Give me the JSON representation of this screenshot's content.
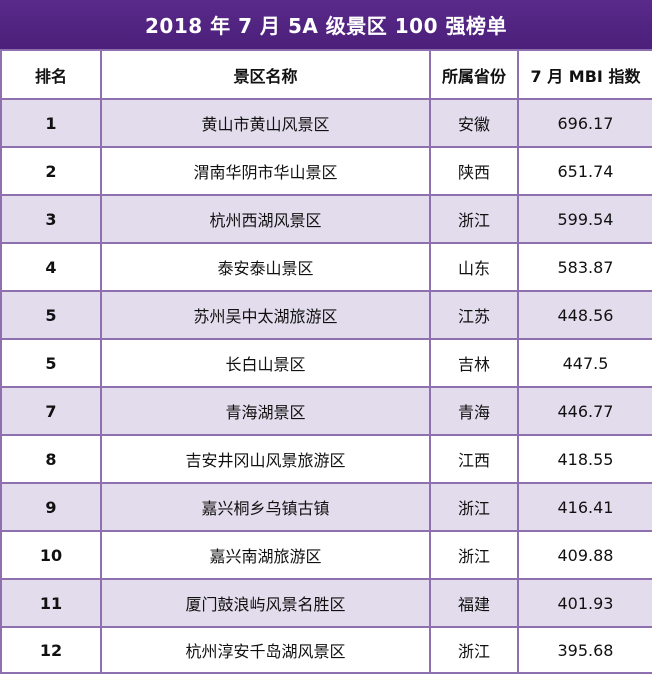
{
  "title": "2018 年 7 月 5A 级景区 100 强榜单",
  "headers": [
    "排名",
    "景区名称",
    "所属省份",
    "7 月 MBI 指数"
  ],
  "rows": [
    {
      "rank": "1",
      "name": "黄山市黄山风景区",
      "province": "安徽",
      "mbi": "696.17"
    },
    {
      "rank": "2",
      "name": "渭南华阴市华山景区",
      "province": "陕西",
      "mbi": "651.74"
    },
    {
      "rank": "3",
      "name": "杭州西湖风景区",
      "province": "浙江",
      "mbi": "599.54"
    },
    {
      "rank": "4",
      "name": "泰安泰山景区",
      "province": "山东",
      "mbi": "583.87"
    },
    {
      "rank": "5",
      "name": "苏州吴中太湖旅游区",
      "province": "江苏",
      "mbi": "448.56"
    },
    {
      "rank": "5",
      "name": "长白山景区",
      "province": "吉林",
      "mbi": "447.5"
    },
    {
      "rank": "7",
      "name": "青海湖景区",
      "province": "青海",
      "mbi": "446.77"
    },
    {
      "rank": "8",
      "name": "吉安井冈山风景旅游区",
      "province": "江西",
      "mbi": "418.55"
    },
    {
      "rank": "9",
      "name": "嘉兴桐乡乌镇古镇",
      "province": "浙江",
      "mbi": "416.41"
    },
    {
      "rank": "10",
      "name": "嘉兴南湖旅游区",
      "province": "浙江",
      "mbi": "409.88"
    },
    {
      "rank": "11",
      "name": "厦门鼓浪屿风景名胜区",
      "province": "福建",
      "mbi": "401.93"
    },
    {
      "rank": "12",
      "name": "杭州淳安千岛湖风景区",
      "province": "浙江",
      "mbi": "395.68"
    }
  ]
}
